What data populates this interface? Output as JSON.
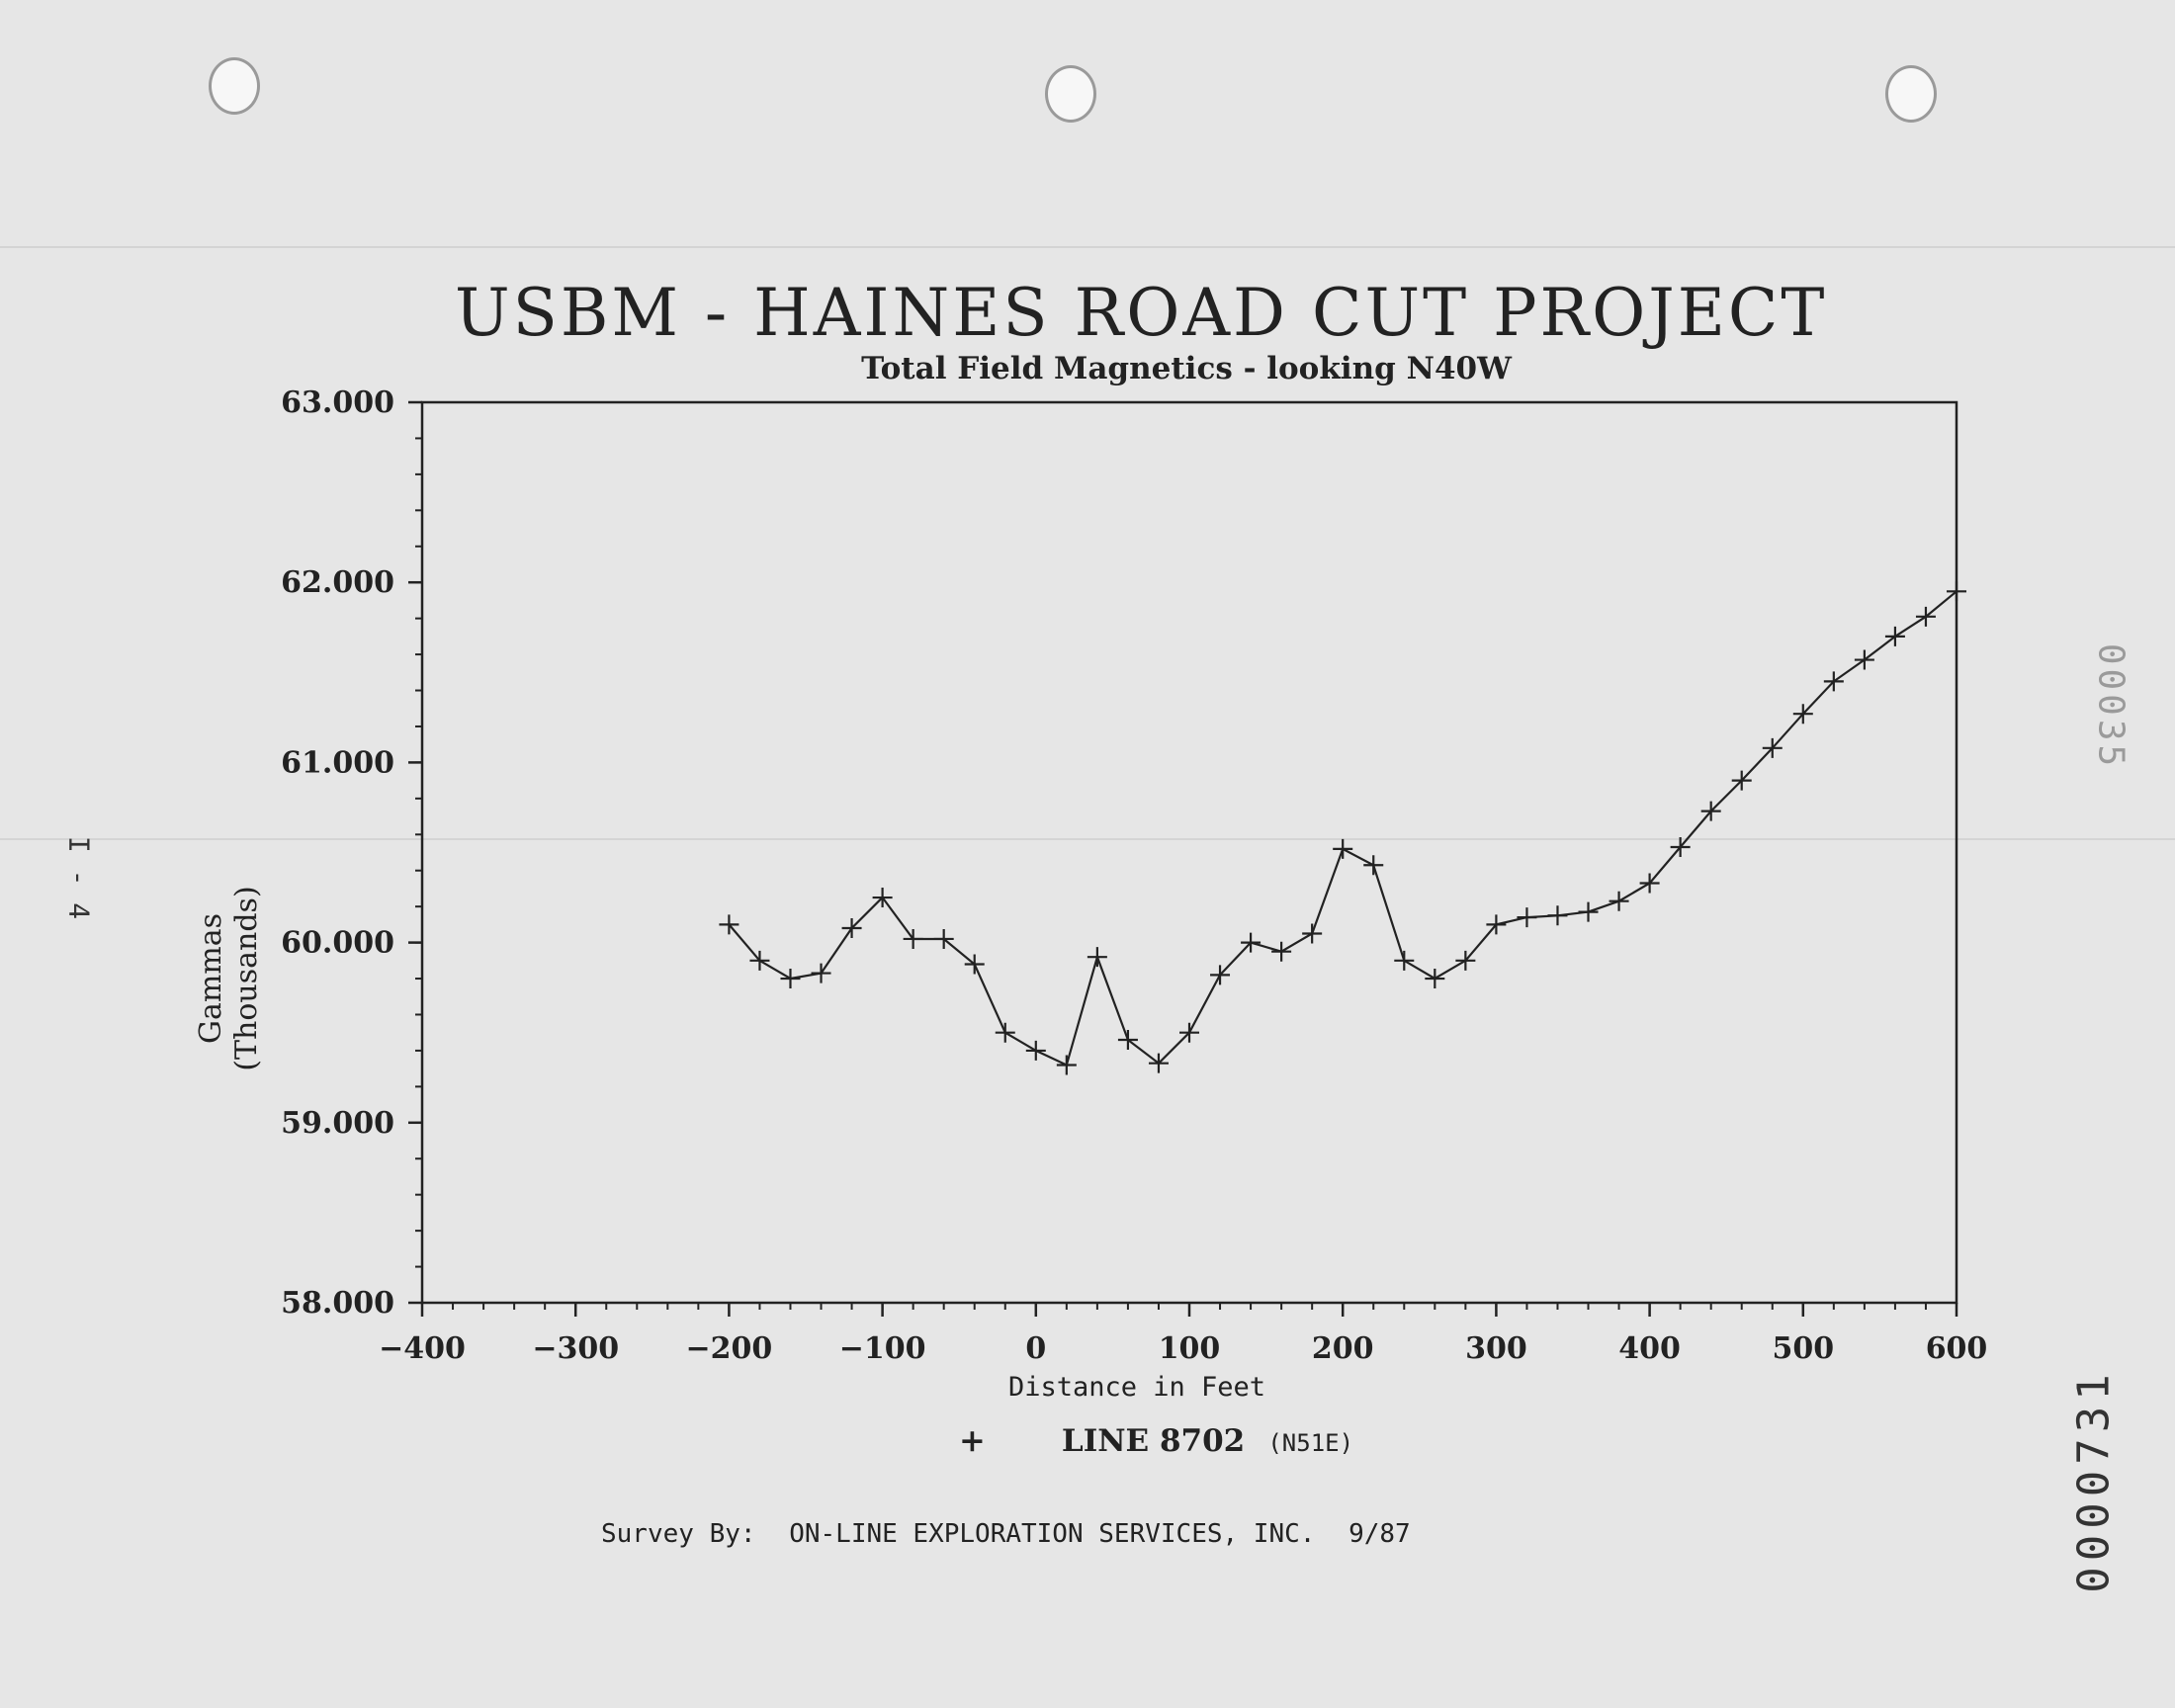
{
  "title": "USBM - HAINES ROAD CUT PROJECT",
  "subtitle": "Total Field Magnetics - looking N40W",
  "ylabel_lines": [
    "Gammas",
    "(Thousands)"
  ],
  "xlabel": "Distance in Feet",
  "legend": {
    "marker": "+",
    "name": "LINE 8702",
    "direction": "(N51E)"
  },
  "survey": {
    "label": "Survey By:",
    "org": "ON-LINE EXPLORATION SERVICES, INC.",
    "date": "9/87"
  },
  "margin_marks": {
    "left": "I - 4",
    "right_faded": "00035",
    "right_bottom": "0000731"
  },
  "chart_data": {
    "type": "line",
    "title": "USBM - HAINES ROAD CUT PROJECT",
    "subtitle": "Total Field Magnetics - looking N40W",
    "xlabel": "Distance in Feet",
    "ylabel": "Gammas (Thousands)",
    "xlim": [
      -400,
      600
    ],
    "ylim": [
      58.0,
      63.0
    ],
    "x_ticks": [
      -400,
      -300,
      -200,
      -100,
      0,
      100,
      200,
      300,
      400,
      500,
      600
    ],
    "x_tick_labels": [
      "-400",
      "-300",
      "-200",
      "-100",
      "0",
      "100",
      "200",
      "300",
      "400",
      "500",
      "600"
    ],
    "y_ticks": [
      58,
      59,
      60,
      61,
      62,
      63
    ],
    "y_tick_labels": [
      "58.000",
      "59.000",
      "60.000",
      "61.000",
      "62.000",
      "63.000"
    ],
    "grid": false,
    "legend_position": "bottom-center",
    "series": [
      {
        "name": "LINE 8702 (N51E)",
        "marker": "+",
        "x": [
          -200,
          -180,
          -160,
          -140,
          -120,
          -100,
          -80,
          -60,
          -40,
          -20,
          0,
          20,
          40,
          60,
          80,
          100,
          120,
          140,
          160,
          180,
          200,
          220,
          240,
          260,
          280,
          300,
          320,
          340,
          360,
          380,
          400,
          420,
          440,
          460,
          480,
          500,
          520,
          540,
          560,
          580,
          600
        ],
        "y": [
          60.1,
          59.9,
          59.8,
          59.83,
          60.08,
          60.25,
          60.02,
          60.02,
          59.88,
          59.5,
          59.4,
          59.32,
          59.92,
          59.46,
          59.33,
          59.5,
          59.82,
          60.0,
          59.95,
          60.05,
          60.52,
          60.43,
          59.9,
          59.8,
          59.9,
          60.1,
          60.14,
          60.15,
          60.17,
          60.23,
          60.33,
          60.53,
          60.73,
          60.9,
          61.08,
          61.27,
          61.45,
          61.57,
          61.7,
          61.81,
          61.95
        ]
      }
    ]
  }
}
